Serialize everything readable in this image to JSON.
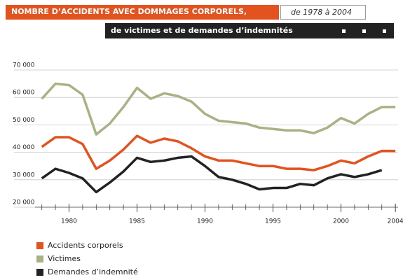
{
  "chart_data": {
    "type": "line",
    "title": "NOMBRE D’ACCIDENTS AVEC DOMMAGES CORPORELS,",
    "title_range": "de 1978 à 2004",
    "subtitle": "de victimes et de demandes d’indemnités",
    "x": [
      1978,
      1979,
      1980,
      1981,
      1982,
      1983,
      1984,
      1985,
      1986,
      1987,
      1988,
      1989,
      1990,
      1991,
      1992,
      1993,
      1994,
      1995,
      1996,
      1997,
      1998,
      1999,
      2000,
      2001,
      2002,
      2003,
      2004
    ],
    "series": [
      {
        "name": "Accidents corporels",
        "color": "#e2531f",
        "values": [
          42000,
          45500,
          45500,
          43000,
          34000,
          37000,
          41000,
          46000,
          43500,
          45000,
          44000,
          41500,
          38500,
          37000,
          37000,
          36000,
          35000,
          35000,
          34000,
          34000,
          33500,
          35000,
          37000,
          36000,
          38500,
          40500,
          40500
        ]
      },
      {
        "name": "Victimes",
        "color": "#a7b285",
        "values": [
          59500,
          65000,
          64500,
          61000,
          46500,
          50500,
          56500,
          63500,
          59500,
          61500,
          60500,
          58500,
          54000,
          51500,
          51000,
          50500,
          49000,
          48500,
          48000,
          48000,
          47000,
          49000,
          52500,
          50500,
          54000,
          56500,
          56500
        ]
      },
      {
        "name": "Demandes d’indemnité",
        "color": "#222222",
        "values": [
          30500,
          34000,
          32500,
          30500,
          25500,
          29000,
          33000,
          38000,
          36500,
          37000,
          38000,
          38500,
          35000,
          31000,
          30000,
          28500,
          26500,
          27000,
          27000,
          28500,
          28000,
          30500,
          32000,
          31000,
          32000,
          33500,
          null
        ]
      }
    ],
    "xlim": [
      1977.5,
      2004.2
    ],
    "xticks": [
      1980,
      1985,
      1990,
      1995,
      2000,
      2004
    ],
    "ylim": [
      20000,
      70000
    ],
    "yticks": [
      {
        "value": 20000,
        "label": "20 000"
      },
      {
        "value": 30000,
        "label": "30 000"
      },
      {
        "value": 40000,
        "label": "40 000"
      },
      {
        "value": 50000,
        "label": "50 000"
      },
      {
        "value": 60000,
        "label": "60 000"
      },
      {
        "value": 70000,
        "label": "70 000"
      }
    ],
    "grid": true
  }
}
